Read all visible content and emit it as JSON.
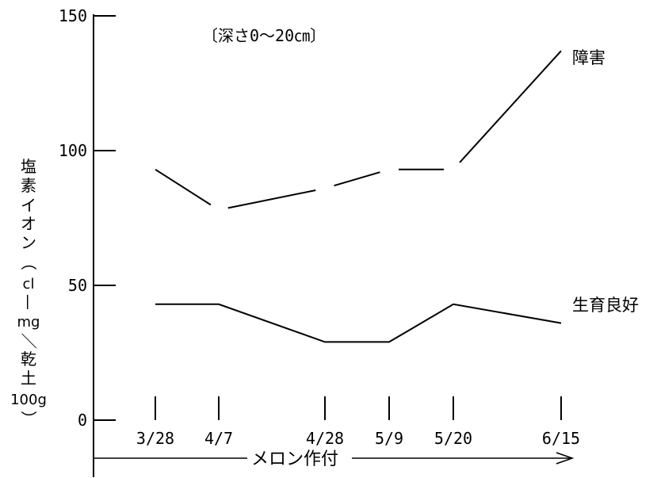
{
  "chart_data": {
    "type": "line",
    "annotation": "〔深さ0～20㎝〕",
    "ylabel": "塩素イオン（cl—mg／乾土100g）",
    "ylabel_parts": [
      "塩",
      "素",
      "イ",
      "オ",
      "ン",
      "（",
      "cl",
      "—",
      "mg",
      "／",
      "乾",
      "土",
      "100g",
      "）"
    ],
    "ylim": [
      0,
      150
    ],
    "yticks": [
      "0",
      "50",
      "100",
      "150"
    ],
    "categories": [
      "3/28",
      "4/7",
      "4/28",
      "5/9",
      "5/20",
      "6/15"
    ],
    "x_arrow_label": "メロン作付",
    "series": [
      {
        "name": "障害",
        "style": "dashed",
        "values": [
          93,
          78,
          86,
          93,
          93,
          137
        ]
      },
      {
        "name": "生育良好",
        "style": "solid",
        "values": [
          43,
          43,
          29,
          29,
          43,
          36
        ]
      }
    ],
    "grid": false,
    "legend": "series labels at line ends (right)"
  }
}
